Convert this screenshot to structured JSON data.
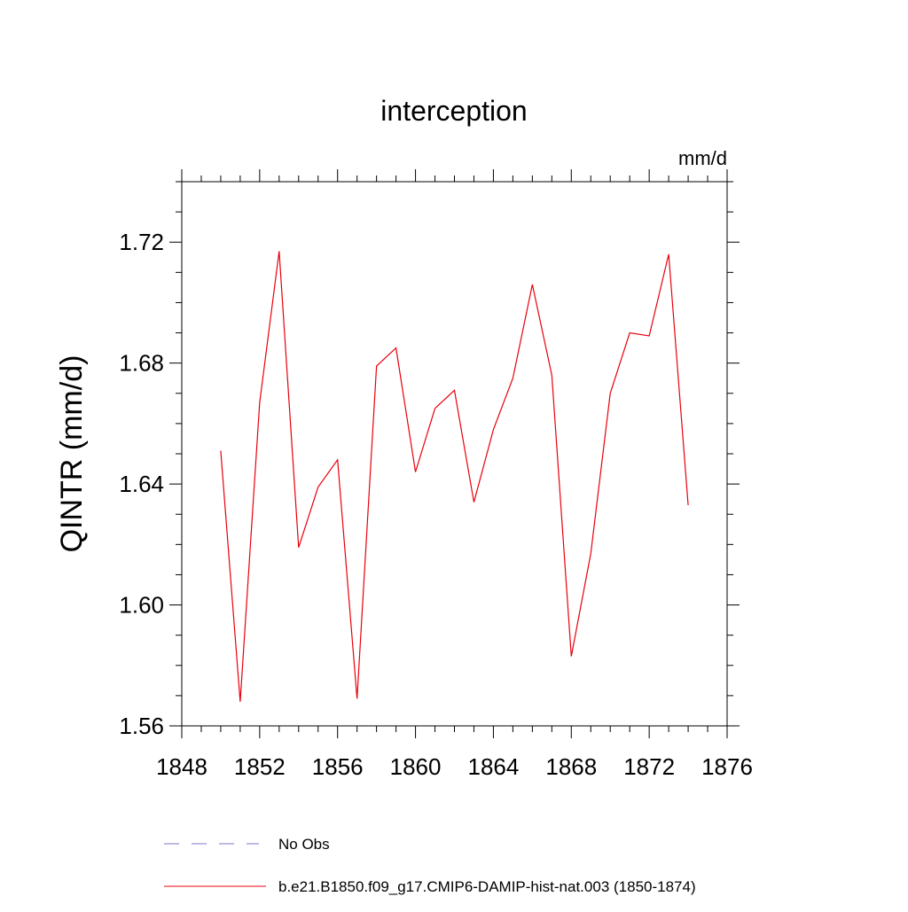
{
  "chart_data": {
    "type": "line",
    "title": "interception",
    "units_label": "mm/d",
    "xlabel": "",
    "ylabel": "QINTR  (mm/d)",
    "xlim": [
      1848,
      1876
    ],
    "ylim": [
      1.56,
      1.74
    ],
    "x_ticks": [
      "1848",
      "1852",
      "1856",
      "1860",
      "1864",
      "1868",
      "1872",
      "1876"
    ],
    "y_ticks": [
      "1.56",
      "1.60",
      "1.64",
      "1.68",
      "1.72"
    ],
    "grid": false,
    "legend_placement": "bottom",
    "legend": [
      {
        "label": "No Obs",
        "color": "#7b74c9",
        "dash": "dashed"
      },
      {
        "label": "b.e21.B1850.f09_g17.CMIP6-DAMIP-hist-nat.003 (1850-1874)",
        "color": "#e8000b",
        "dash": "solid"
      }
    ],
    "series": [
      {
        "name": "b.e21.B1850.f09_g17.CMIP6-DAMIP-hist-nat.003 (1850-1874)",
        "color": "#e8000b",
        "x": [
          1850,
          1851,
          1852,
          1853,
          1854,
          1855,
          1856,
          1857,
          1858,
          1859,
          1860,
          1861,
          1862,
          1863,
          1864,
          1865,
          1866,
          1867,
          1868,
          1869,
          1870,
          1871,
          1872,
          1873,
          1874
        ],
        "values": [
          1.651,
          1.568,
          1.667,
          1.717,
          1.619,
          1.639,
          1.648,
          1.569,
          1.679,
          1.685,
          1.644,
          1.665,
          1.671,
          1.634,
          1.658,
          1.675,
          1.706,
          1.676,
          1.583,
          1.617,
          1.67,
          1.69,
          1.689,
          1.716,
          1.633
        ]
      }
    ]
  }
}
